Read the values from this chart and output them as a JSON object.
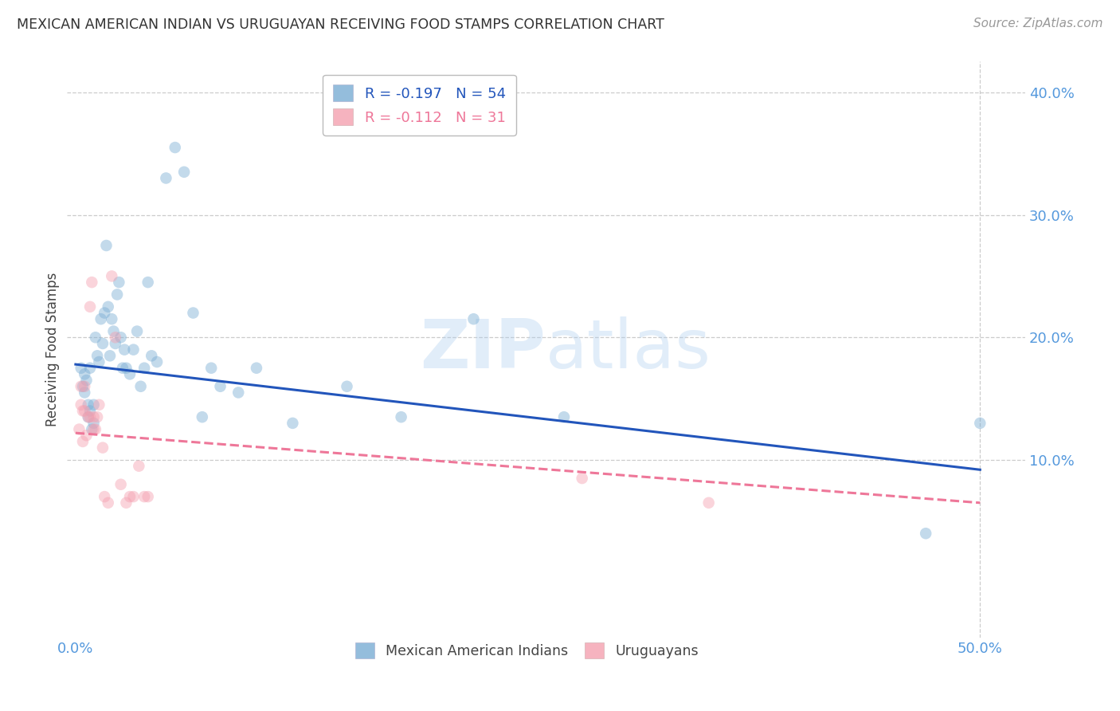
{
  "title": "MEXICAN AMERICAN INDIAN VS URUGUAYAN RECEIVING FOOD STAMPS CORRELATION CHART",
  "source": "Source: ZipAtlas.com",
  "ylabel": "Receiving Food Stamps",
  "xlabel_ticks": [
    0.0,
    0.5
  ],
  "xlabel_labels": [
    "0.0%",
    "50.0%"
  ],
  "ylabel_ticks_right": [
    0.1,
    0.2,
    0.3,
    0.4
  ],
  "ylabel_labels_right": [
    "10.0%",
    "20.0%",
    "30.0%",
    "40.0%"
  ],
  "xlim": [
    -0.005,
    0.525
  ],
  "ylim": [
    -0.045,
    0.425
  ],
  "blue_scatter_x": [
    0.003,
    0.004,
    0.005,
    0.005,
    0.006,
    0.007,
    0.007,
    0.008,
    0.008,
    0.009,
    0.01,
    0.01,
    0.011,
    0.012,
    0.013,
    0.014,
    0.015,
    0.016,
    0.017,
    0.018,
    0.019,
    0.02,
    0.021,
    0.022,
    0.023,
    0.024,
    0.025,
    0.026,
    0.027,
    0.028,
    0.03,
    0.032,
    0.034,
    0.036,
    0.038,
    0.04,
    0.042,
    0.045,
    0.05,
    0.055,
    0.06,
    0.065,
    0.07,
    0.075,
    0.08,
    0.09,
    0.1,
    0.12,
    0.15,
    0.18,
    0.22,
    0.27,
    0.47,
    0.5
  ],
  "blue_scatter_y": [
    0.175,
    0.16,
    0.17,
    0.155,
    0.165,
    0.145,
    0.135,
    0.14,
    0.175,
    0.125,
    0.13,
    0.145,
    0.2,
    0.185,
    0.18,
    0.215,
    0.195,
    0.22,
    0.275,
    0.225,
    0.185,
    0.215,
    0.205,
    0.195,
    0.235,
    0.245,
    0.2,
    0.175,
    0.19,
    0.175,
    0.17,
    0.19,
    0.205,
    0.16,
    0.175,
    0.245,
    0.185,
    0.18,
    0.33,
    0.355,
    0.335,
    0.22,
    0.135,
    0.175,
    0.16,
    0.155,
    0.175,
    0.13,
    0.16,
    0.135,
    0.215,
    0.135,
    0.04,
    0.13
  ],
  "pink_scatter_x": [
    0.002,
    0.003,
    0.003,
    0.004,
    0.004,
    0.005,
    0.005,
    0.006,
    0.007,
    0.008,
    0.008,
    0.009,
    0.01,
    0.011,
    0.012,
    0.013,
    0.015,
    0.016,
    0.018,
    0.02,
    0.022,
    0.025,
    0.028,
    0.03,
    0.032,
    0.035,
    0.038,
    0.04,
    0.28,
    0.35,
    0.01
  ],
  "pink_scatter_y": [
    0.125,
    0.145,
    0.16,
    0.115,
    0.14,
    0.14,
    0.16,
    0.12,
    0.135,
    0.135,
    0.225,
    0.245,
    0.135,
    0.125,
    0.135,
    0.145,
    0.11,
    0.07,
    0.065,
    0.25,
    0.2,
    0.08,
    0.065,
    0.07,
    0.07,
    0.095,
    0.07,
    0.07,
    0.085,
    0.065,
    0.125
  ],
  "blue_line_x0": 0.0,
  "blue_line_x1": 0.5,
  "blue_line_y0": 0.178,
  "blue_line_y1": 0.092,
  "pink_line_x0": 0.0,
  "pink_line_x1": 0.5,
  "pink_line_y0": 0.122,
  "pink_line_y1": 0.065,
  "blue_color": "#7AADD4",
  "pink_color": "#F4A0B0",
  "blue_line_color": "#2255BB",
  "pink_line_color": "#EE7799",
  "watermark_zip": "ZIP",
  "watermark_atlas": "atlas",
  "title_color": "#333333",
  "axis_label_color": "#444444",
  "tick_label_color": "#5599DD",
  "grid_color": "#CCCCCC",
  "source_color": "#999999",
  "legend_label_blue": "Mexican American Indians",
  "legend_label_pink": "Uruguayans",
  "legend_R_blue": "R = -0.197",
  "legend_N_blue": "N = 54",
  "legend_R_pink": "R = -0.112",
  "legend_N_pink": "N = 31",
  "scatter_size": 110,
  "scatter_alpha": 0.45,
  "line_width": 2.2
}
